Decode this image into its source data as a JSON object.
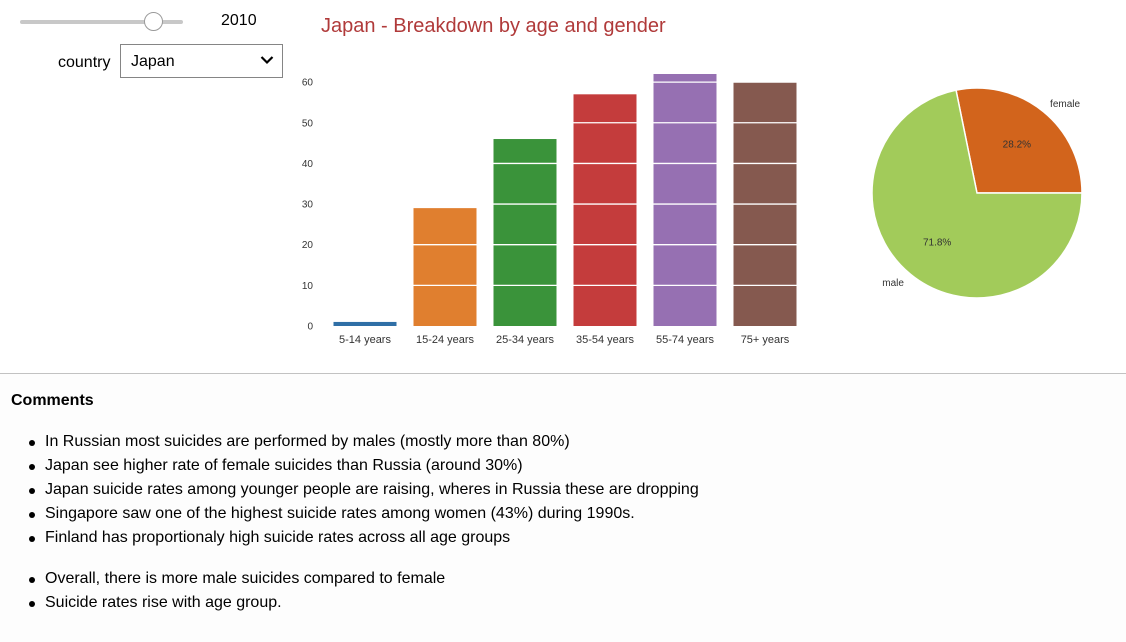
{
  "controls": {
    "year_slider": {
      "value": 2010,
      "fraction": 0.82
    },
    "year_label": "2010",
    "country_label": "country",
    "country_select": {
      "selected": "Japan",
      "icon": "chevron-down-icon"
    }
  },
  "chart_data": [
    {
      "type": "bar",
      "title": "Japan - Breakdown by age and gender",
      "categories": [
        "5-14 years",
        "15-24 years",
        "25-34 years",
        "35-54 years",
        "55-74 years",
        "75+ years"
      ],
      "values": [
        1,
        29,
        46,
        57,
        62,
        60
      ],
      "colors": [
        "#2f6fa6",
        "#e07f2f",
        "#3a933a",
        "#c43c3c",
        "#9670b2",
        "#85594f"
      ],
      "yticks": [
        0,
        10,
        20,
        30,
        40,
        50,
        60
      ],
      "ylim": [
        0,
        62
      ],
      "grid": true,
      "xlabel": "",
      "ylabel": ""
    },
    {
      "type": "pie",
      "labels": [
        "female",
        "male"
      ],
      "values": [
        28.2,
        71.8
      ],
      "value_labels": [
        "28.2%",
        "71.8%"
      ],
      "colors": [
        "#d2641c",
        "#a2cb5a"
      ]
    }
  ],
  "comments": {
    "title": "Comments",
    "list1": [
      "In Russian most suicides are performed by males (mostly more than 80%)",
      "Japan see higher rate of female suicides than Russia (around 30%)",
      "Japan suicide rates among younger people are raising, wheres in Russia these are dropping",
      "Singapore saw one of the highest suicide rates among women (43%) during 1990s.",
      "Finland has proportionaly high suicide rates across all age groups"
    ],
    "list2": [
      "Overall, there is more male suicides compared to female",
      "Suicide rates rise with age group."
    ]
  }
}
